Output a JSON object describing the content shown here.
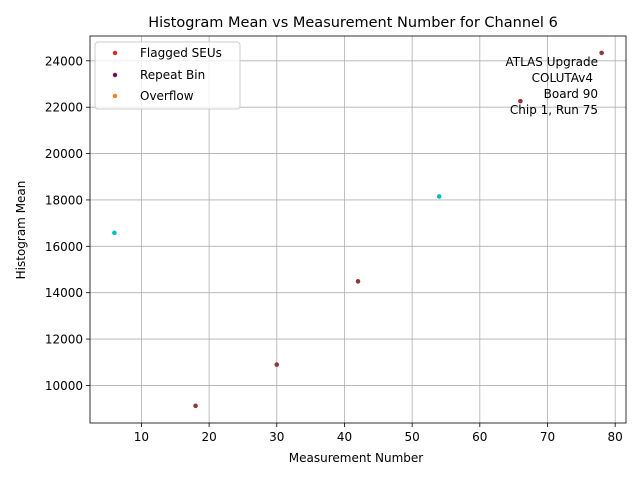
{
  "chart_data": {
    "type": "scatter",
    "title": "Histogram Mean vs Measurement Number for Channel 6",
    "xlabel": "Measurement Number",
    "ylabel": "Histogram Mean",
    "xlim": [
      2.4,
      81.6
    ],
    "ylim": [
      8380,
      25070
    ],
    "xticks": [
      10,
      20,
      30,
      40,
      50,
      60,
      70,
      80
    ],
    "yticks": [
      10000,
      12000,
      14000,
      16000,
      18000,
      20000,
      22000,
      24000
    ],
    "grid": true,
    "legend_position": "upper left",
    "legend": [
      {
        "label": "Flagged SEUs",
        "color": "#d62728"
      },
      {
        "label": "Repeat Bin",
        "color": "#6a0d5a"
      },
      {
        "label": "Overflow",
        "color": "#ff7f0e"
      }
    ],
    "series": [
      {
        "color": "#8b3a3a",
        "x": [
          18,
          30,
          42,
          66,
          78
        ],
        "y": [
          9120,
          10900,
          14490,
          22260,
          24340
        ]
      },
      {
        "color": "#00bfc4",
        "x": [
          6,
          54
        ],
        "y": [
          16580,
          18150
        ]
      }
    ],
    "annotation": {
      "lines": [
        "ATLAS Upgrade",
        "COLUTAv4",
        "Board 90",
        "Chip 1, Run 75"
      ],
      "position": "upper right"
    }
  }
}
